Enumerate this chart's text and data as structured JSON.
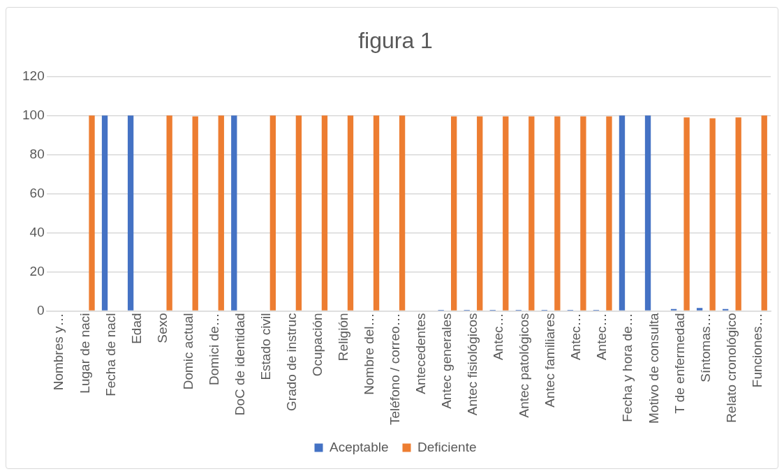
{
  "chart_data": {
    "type": "bar",
    "title": "figura 1",
    "categories": [
      "Nombres y…",
      "Lugar de naci",
      "Fecha de nacl",
      "Edad",
      "Sexo",
      "Domic actual",
      "Domici de…",
      "DoC de identidad",
      "Estado civil",
      "Grado de instruc",
      "Ocupación",
      "Religión",
      "Nombre del…",
      "Teléfono / correo…",
      "Antecedentes",
      "Antec generales",
      "Antec fisiológicos",
      "Antec…",
      "Antec patológicos",
      "Antec familiares",
      "Antec…",
      "Antec…",
      "Fecha y hora de…",
      "Motivo de consulta",
      "T de enfermedad",
      "Síntomas…",
      "Relato cronológico",
      "Funciones…"
    ],
    "series": [
      {
        "name": "Aceptable",
        "color": "#4472c4",
        "values": [
          0,
          0,
          100,
          100,
          0,
          0,
          0,
          100,
          0,
          0,
          0,
          0,
          0,
          0,
          0,
          0.5,
          0.5,
          0.5,
          0.5,
          0.5,
          0.5,
          0.5,
          100,
          100,
          1,
          1.5,
          1,
          0
        ]
      },
      {
        "name": "Deficiente",
        "color": "#ed7d31",
        "values": [
          0,
          100,
          0,
          0,
          100,
          99.5,
          100,
          0,
          100,
          100,
          100,
          100,
          100,
          100,
          0,
          99.5,
          99.5,
          99.5,
          99.5,
          99.5,
          99.5,
          99.5,
          0,
          0,
          99,
          98.5,
          99,
          100
        ]
      }
    ],
    "ylim": [
      0,
      120
    ],
    "yticks": [
      0,
      20,
      40,
      60,
      80,
      100,
      120
    ],
    "grid": "y",
    "legend": "bottom"
  }
}
